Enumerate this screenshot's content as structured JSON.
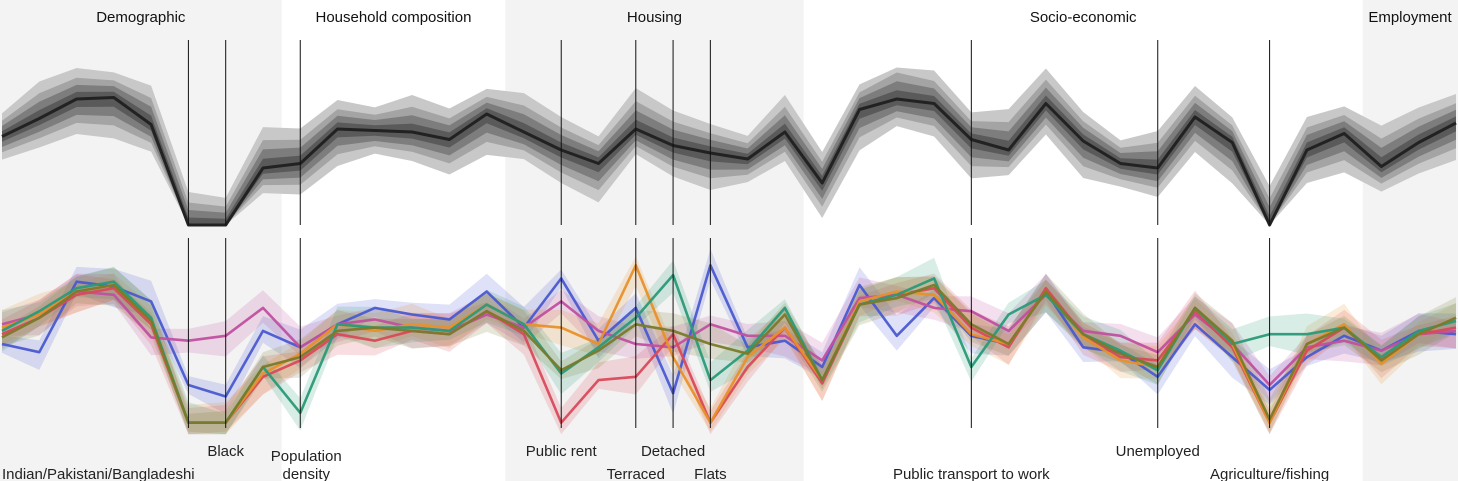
{
  "chart_data": {
    "type": "line",
    "title": "",
    "groups": [
      "Demographic",
      "Household composition",
      "Housing",
      "Socio-economic",
      "Employment"
    ],
    "group_spans": [
      {
        "name": "Demographic",
        "from": 0,
        "to": 8,
        "shaded": true
      },
      {
        "name": "Household composition",
        "from": 8,
        "to": 14,
        "shaded": false
      },
      {
        "name": "Housing",
        "from": 14,
        "to": 22,
        "shaded": true
      },
      {
        "name": "Socio-economic",
        "from": 22,
        "to": 37,
        "shaded": false
      },
      {
        "name": "Employment",
        "from": 37,
        "to": 40,
        "shaded": true
      }
    ],
    "n_variables": 40,
    "highlighted_variables": [
      {
        "index": 5,
        "label": "Indian/Pakistani/Bangladeshi",
        "row": 2
      },
      {
        "index": 6,
        "label": "Black",
        "row": 1
      },
      {
        "index": 8,
        "label": "Population density",
        "row": 1
      },
      {
        "index": 15,
        "label": "Public rent",
        "row": 1
      },
      {
        "index": 17,
        "label": "Terraced",
        "row": 2
      },
      {
        "index": 18,
        "label": "Detached",
        "row": 1
      },
      {
        "index": 19,
        "label": "Flats",
        "row": 2
      },
      {
        "index": 26,
        "label": "Public transport to work",
        "row": 2
      },
      {
        "index": 31,
        "label": "Unemployed",
        "row": 1
      },
      {
        "index": 34,
        "label": "Agriculture/fishing",
        "row": 2
      }
    ],
    "top_panel": {
      "median": [
        0.59,
        0.71,
        0.84,
        0.85,
        0.67,
        0.0,
        0.0,
        0.38,
        0.41,
        0.64,
        0.63,
        0.62,
        0.57,
        0.74,
        0.62,
        0.5,
        0.41,
        0.64,
        0.53,
        0.48,
        0.44,
        0.62,
        0.28,
        0.77,
        0.84,
        0.81,
        0.57,
        0.5,
        0.81,
        0.56,
        0.41,
        0.38,
        0.72,
        0.55,
        0.0,
        0.5,
        0.61,
        0.39,
        0.55,
        0.68
      ],
      "band_half_widths": [
        0.05,
        0.1,
        0.15,
        0.22
      ],
      "color": "#222222"
    },
    "bottom_panel": {
      "series": [
        {
          "color": "#4a5ad0",
          "values": [
            0.5,
            0.45,
            0.88,
            0.85,
            0.76,
            0.25,
            0.18,
            0.58,
            0.48,
            0.62,
            0.72,
            0.68,
            0.65,
            0.82,
            0.6,
            0.9,
            0.52,
            0.72,
            0.2,
            0.98,
            0.48,
            0.52,
            0.36,
            0.86,
            0.55,
            0.78,
            0.55,
            0.5,
            0.82,
            0.48,
            0.45,
            0.3,
            0.62,
            0.42,
            0.22,
            0.42,
            0.55,
            0.46,
            0.58,
            0.56
          ]
        },
        {
          "color": "#c050a0",
          "values": [
            0.62,
            0.68,
            0.82,
            0.8,
            0.54,
            0.52,
            0.55,
            0.72,
            0.48,
            0.62,
            0.65,
            0.6,
            0.58,
            0.68,
            0.6,
            0.76,
            0.58,
            0.5,
            0.48,
            0.62,
            0.55,
            0.55,
            0.4,
            0.78,
            0.8,
            0.72,
            0.7,
            0.58,
            0.8,
            0.58,
            0.55,
            0.45,
            0.68,
            0.5,
            0.25,
            0.48,
            0.52,
            0.46,
            0.56,
            0.58
          ]
        },
        {
          "color": "#d84a5a",
          "values": [
            0.56,
            0.66,
            0.8,
            0.84,
            0.62,
            0.02,
            0.02,
            0.3,
            0.4,
            0.56,
            0.52,
            0.58,
            0.56,
            0.7,
            0.56,
            0.02,
            0.28,
            0.3,
            0.56,
            0.02,
            0.36,
            0.6,
            0.26,
            0.74,
            0.8,
            0.84,
            0.6,
            0.48,
            0.84,
            0.56,
            0.42,
            0.4,
            0.7,
            0.48,
            0.02,
            0.46,
            0.6,
            0.4,
            0.56,
            0.6
          ]
        },
        {
          "color": "#e8902a",
          "values": [
            0.6,
            0.68,
            0.82,
            0.86,
            0.64,
            0.02,
            0.02,
            0.32,
            0.44,
            0.62,
            0.58,
            0.62,
            0.6,
            0.74,
            0.62,
            0.6,
            0.5,
            0.98,
            0.42,
            0.02,
            0.42,
            0.6,
            0.28,
            0.76,
            0.82,
            0.8,
            0.56,
            0.5,
            0.82,
            0.54,
            0.4,
            0.36,
            0.72,
            0.5,
            0.02,
            0.5,
            0.62,
            0.38,
            0.56,
            0.66
          ]
        },
        {
          "color": "#2a9a78",
          "values": [
            0.58,
            0.7,
            0.84,
            0.88,
            0.66,
            0.02,
            0.02,
            0.36,
            0.08,
            0.62,
            0.6,
            0.6,
            0.58,
            0.74,
            0.62,
            0.32,
            0.48,
            0.66,
            0.92,
            0.28,
            0.46,
            0.72,
            0.28,
            0.74,
            0.8,
            0.9,
            0.36,
            0.68,
            0.8,
            0.56,
            0.46,
            0.34,
            0.72,
            0.5,
            0.56,
            0.56,
            0.6,
            0.42,
            0.58,
            0.64
          ]
        },
        {
          "color": "#7a7a2a",
          "values": [
            0.54,
            0.66,
            0.82,
            0.86,
            0.64,
            0.02,
            0.02,
            0.36,
            0.42,
            0.58,
            0.6,
            0.58,
            0.56,
            0.7,
            0.58,
            0.34,
            0.46,
            0.62,
            0.58,
            0.5,
            0.44,
            0.68,
            0.28,
            0.74,
            0.78,
            0.86,
            0.62,
            0.5,
            0.82,
            0.56,
            0.44,
            0.36,
            0.72,
            0.52,
            0.04,
            0.5,
            0.6,
            0.4,
            0.56,
            0.66
          ]
        }
      ]
    }
  }
}
